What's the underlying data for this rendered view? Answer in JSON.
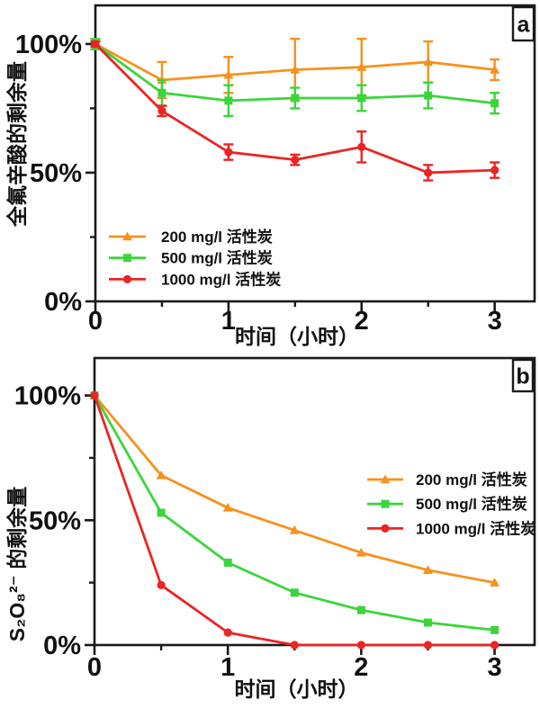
{
  "figure": {
    "background": "#ffffff",
    "panel_labels": [
      "a",
      "b"
    ]
  },
  "colors": {
    "axis": "#1a1a1a",
    "series_200": "#F6921E",
    "series_500": "#3BD53B",
    "series_1000": "#EC2424"
  },
  "chart_data": [
    {
      "type": "line",
      "panel_label": "a",
      "title": "",
      "xlabel": "时间（小时）",
      "ylabel": "全氟辛酸的剩余量",
      "x": [
        0,
        0.5,
        1,
        1.5,
        2,
        2.5,
        3
      ],
      "xlim": [
        0,
        3.3
      ],
      "ylim": [
        0,
        115
      ],
      "grid": false,
      "xticks_major": [
        0,
        1,
        2,
        3
      ],
      "xtick_labels": [
        "0",
        "1",
        "2",
        "3"
      ],
      "xticks_minor": [
        0.5,
        1.5,
        2.5
      ],
      "yticks_major": [
        0,
        50,
        100
      ],
      "ytick_labels": [
        "0%",
        "50%",
        "100%"
      ],
      "yticks_minor": [
        25,
        75
      ],
      "legend_position": "lower-left-inside",
      "series": [
        {
          "name": "200 mg/l 活性炭",
          "color": "#F6921E",
          "marker": "triangle",
          "values": [
            100,
            86,
            88,
            90,
            91,
            93,
            90
          ],
          "errors": [
            2,
            7,
            7,
            12,
            11,
            8,
            4
          ]
        },
        {
          "name": "500 mg/l 活性炭",
          "color": "#3BD53B",
          "marker": "square",
          "values": [
            100,
            81,
            78,
            79,
            79,
            80,
            77
          ],
          "errors": [
            2,
            5,
            6,
            4,
            5,
            5,
            4
          ]
        },
        {
          "name": "1000 mg/l 活性炭",
          "color": "#EC2424",
          "marker": "circle",
          "values": [
            100,
            74,
            58,
            55,
            60,
            50,
            51
          ],
          "errors": [
            1,
            2,
            3,
            2,
            6,
            3,
            3
          ]
        }
      ]
    },
    {
      "type": "line",
      "panel_label": "b",
      "title": "",
      "xlabel": "时间（小时）",
      "ylabel": "S₂O₈²⁻ 的剩余量",
      "x": [
        0,
        0.5,
        1,
        1.5,
        2,
        2.5,
        3
      ],
      "xlim": [
        0,
        3.3
      ],
      "ylim": [
        0,
        115
      ],
      "grid": false,
      "xticks_major": [
        0,
        1,
        2,
        3
      ],
      "xtick_labels": [
        "0",
        "1",
        "2",
        "3"
      ],
      "xticks_minor": [
        0.5,
        1.5,
        2.5
      ],
      "yticks_major": [
        0,
        50,
        100
      ],
      "ytick_labels": [
        "0%",
        "50%",
        "100%"
      ],
      "yticks_minor": [
        25,
        75
      ],
      "legend_position": "center-right-inside",
      "series": [
        {
          "name": "200 mg/l 活性炭",
          "color": "#F6921E",
          "marker": "triangle",
          "values": [
            100,
            68,
            55,
            46,
            37,
            30,
            25
          ]
        },
        {
          "name": "500 mg/l 活性炭",
          "color": "#3BD53B",
          "marker": "square",
          "values": [
            100,
            53,
            33,
            21,
            14,
            9,
            6
          ]
        },
        {
          "name": "1000 mg/l 活性炭",
          "color": "#EC2424",
          "marker": "circle",
          "values": [
            100,
            24,
            5,
            0,
            0,
            0,
            0
          ]
        }
      ]
    }
  ]
}
